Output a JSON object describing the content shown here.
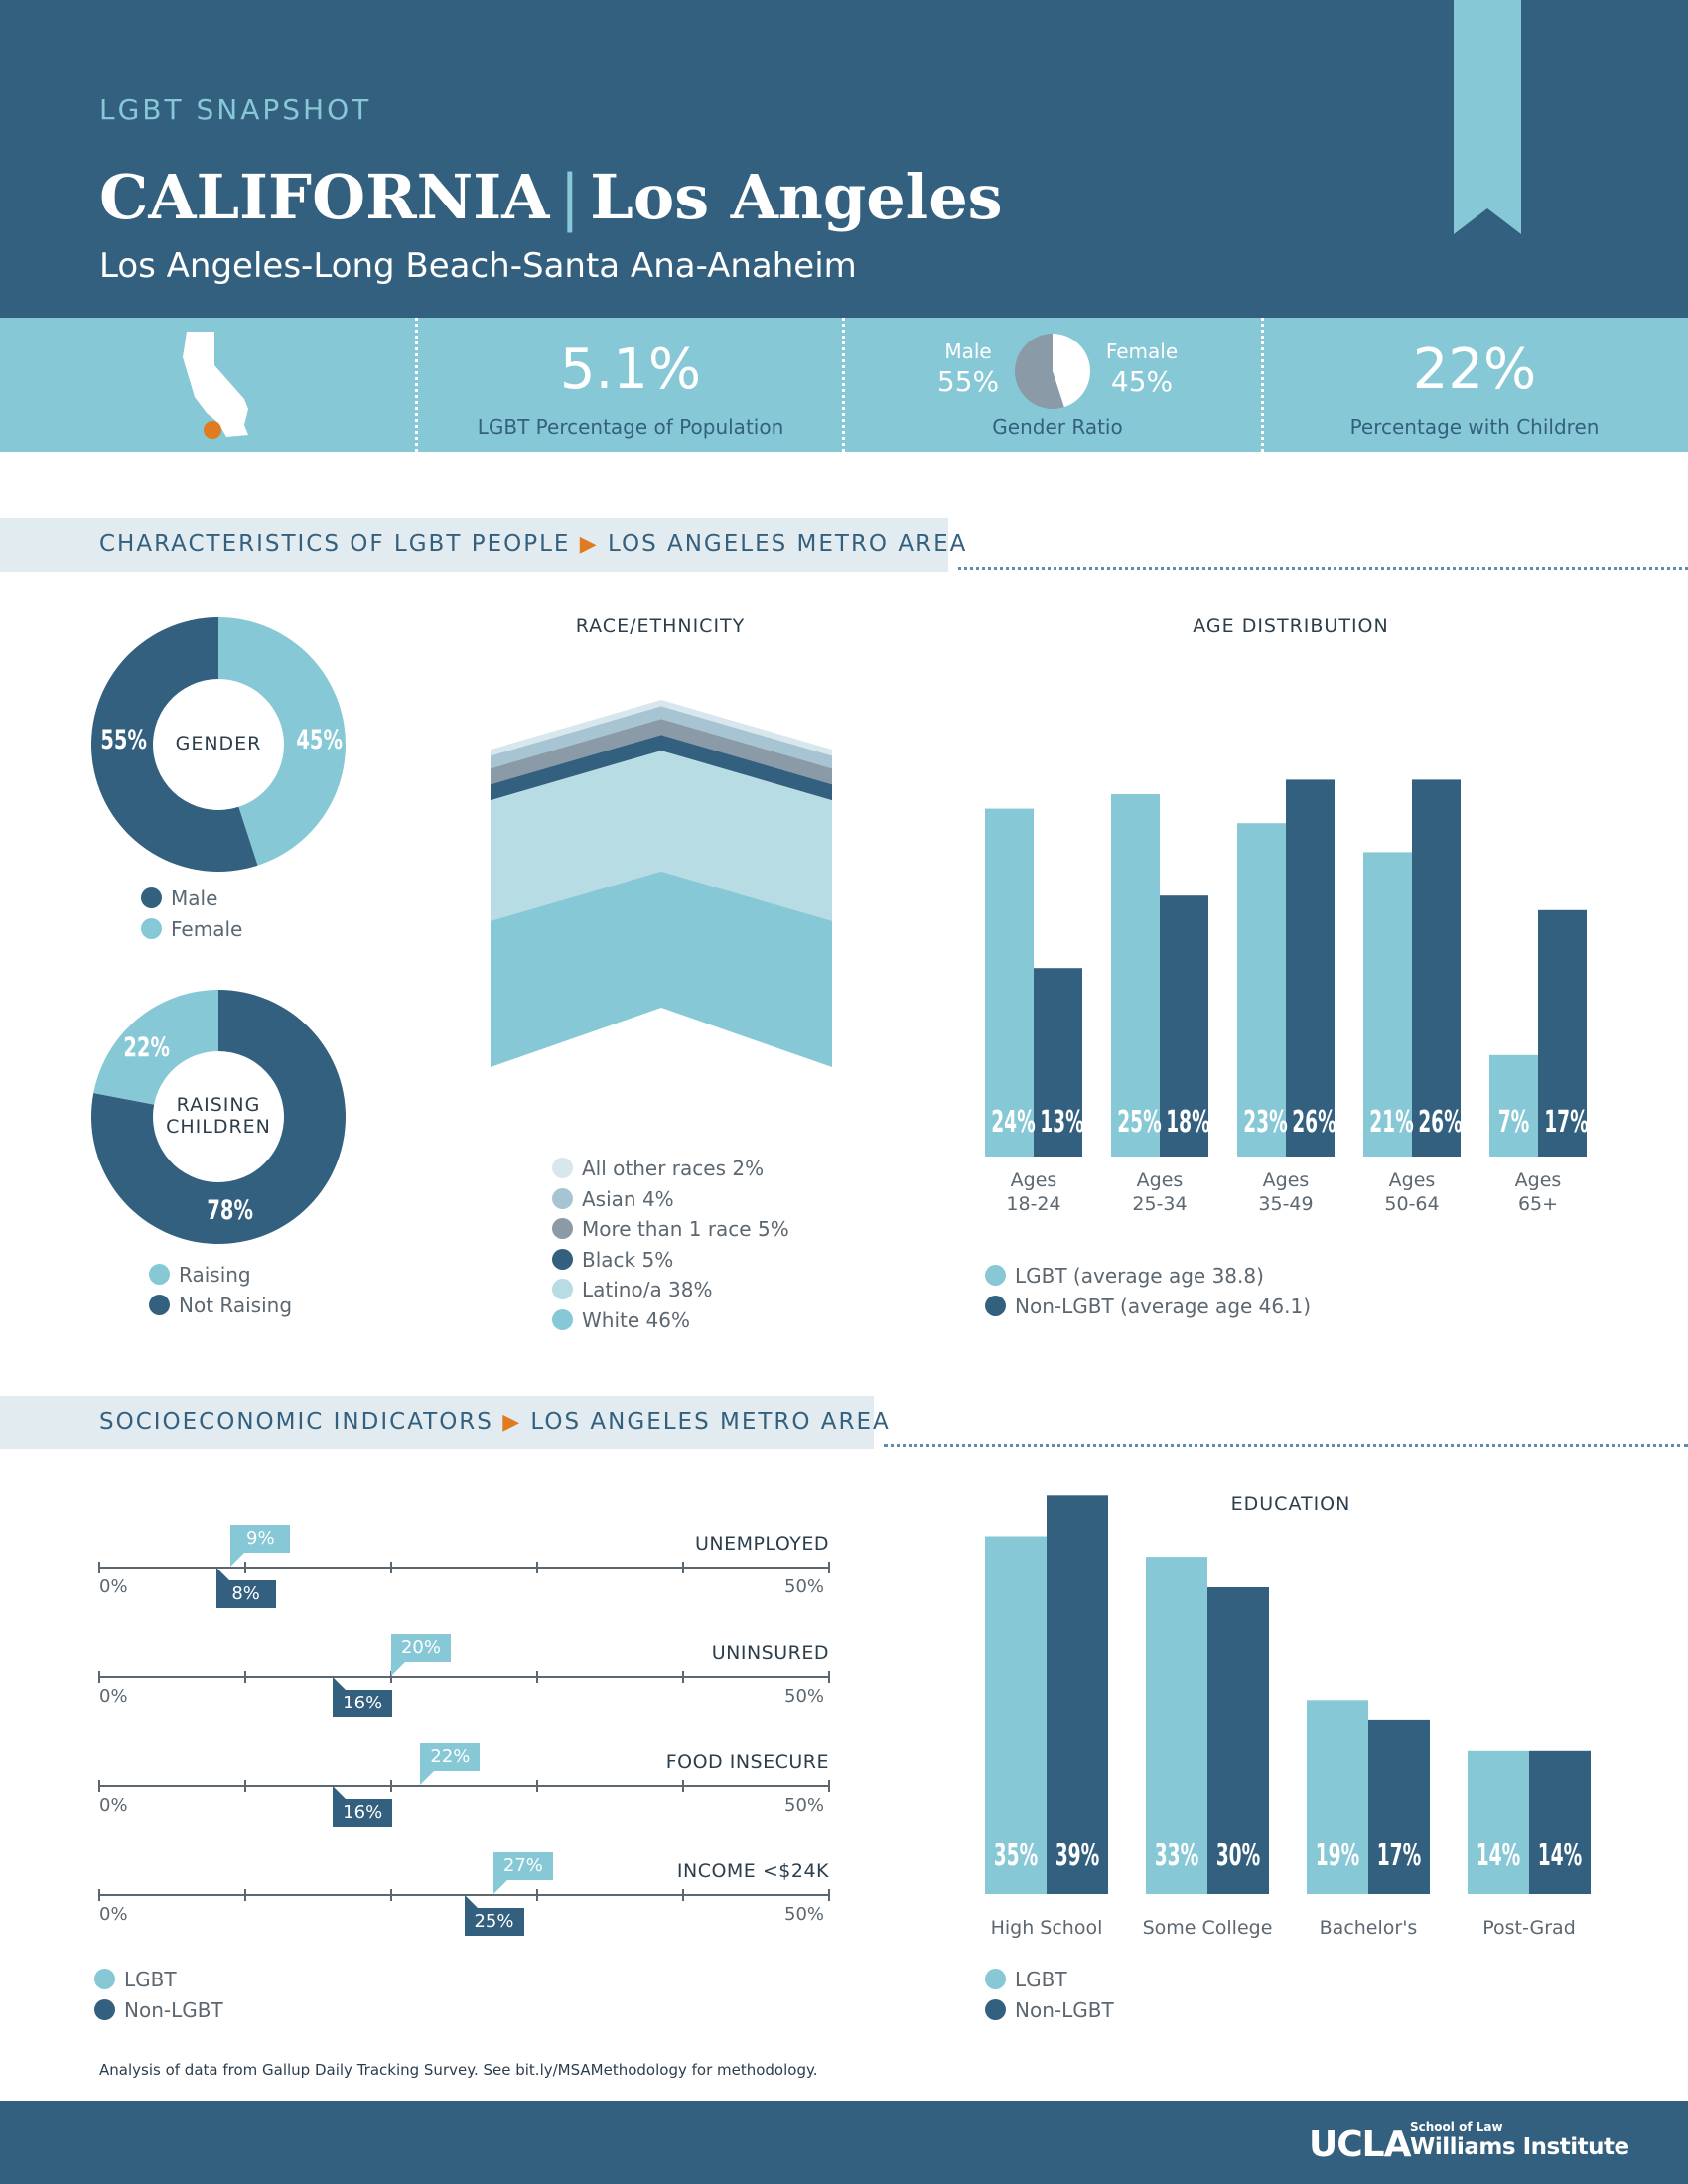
{
  "header": {
    "kicker": "LGBT SNAPSHOT",
    "state": "CALIFORNIA",
    "separator": "|",
    "city": "Los Angeles",
    "metro": "Los Angeles-Long Beach-Santa Ana-Anaheim"
  },
  "stats": {
    "lgbt_pct": "5.1%",
    "lgbt_pct_label": "LGBT Percentage of Population",
    "gender_male_label": "Male",
    "gender_male_pct": "55%",
    "gender_female_label": "Female",
    "gender_female_pct": "45%",
    "gender_label": "Gender Ratio",
    "children_pct": "22%",
    "children_label": "Percentage with Children"
  },
  "sections": {
    "characteristics": "CHARACTERISTICS OF LGBT PEOPLE",
    "characteristics_area": "LOS ANGELES METRO AREA",
    "socioeconomic": "SOCIOECONOMIC INDICATORS",
    "socioeconomic_area": "LOS ANGELES METRO AREA"
  },
  "colors": {
    "dark": "#34607f",
    "light": "#87c8d6",
    "accent": "#e07b1f"
  },
  "chart_data": [
    {
      "type": "pie",
      "center_label": "GENDER",
      "categories": [
        "Male",
        "Female"
      ],
      "values": [
        55,
        45
      ],
      "labels": [
        "55%",
        "45%"
      ]
    },
    {
      "type": "pie",
      "center_label": "RAISING CHILDREN",
      "center_line1": "RAISING",
      "center_line2": "CHILDREN",
      "categories": [
        "Raising",
        "Not Raising"
      ],
      "values": [
        22,
        78
      ],
      "labels": [
        "22%",
        "78%"
      ]
    },
    {
      "type": "area",
      "title": "RACE/ETHNICITY",
      "categories": [
        "All other races",
        "Asian",
        "More than 1 race",
        "Black",
        "Latino/a",
        "White"
      ],
      "values": [
        2,
        4,
        5,
        5,
        38,
        46
      ],
      "legend": [
        "All other races 2%",
        "Asian 4%",
        "More than 1 race 5%",
        "Black 5%",
        "Latino/a 38%",
        "White 46%"
      ]
    },
    {
      "type": "bar",
      "title": "AGE DISTRIBUTION",
      "categories": [
        "Ages 18-24",
        "Ages 25-34",
        "Ages 35-49",
        "Ages 50-64",
        "Ages 65+"
      ],
      "cat_line1": [
        "Ages",
        "Ages",
        "Ages",
        "Ages",
        "Ages"
      ],
      "cat_line2": [
        "18-24",
        "25-34",
        "35-49",
        "50-64",
        "65+"
      ],
      "series": [
        {
          "name": "LGBT (average age 38.8)",
          "values": [
            24,
            25,
            23,
            21,
            7
          ]
        },
        {
          "name": "Non-LGBT (average age 46.1)",
          "values": [
            13,
            18,
            26,
            26,
            17
          ]
        }
      ]
    },
    {
      "type": "bar",
      "orientation": "horizontal",
      "xlim": [
        0,
        50
      ],
      "axis_min_label": "0%",
      "axis_max_label": "50%",
      "categories": [
        "UNEMPLOYED",
        "UNINSURED",
        "FOOD INSECURE",
        "INCOME <$24K"
      ],
      "series": [
        {
          "name": "LGBT",
          "values": [
            9,
            20,
            22,
            27
          ]
        },
        {
          "name": "Non-LGBT",
          "values": [
            8,
            16,
            16,
            25
          ]
        }
      ]
    },
    {
      "type": "bar",
      "title": "EDUCATION",
      "categories": [
        "High School",
        "Some College",
        "Bachelor's",
        "Post-Grad"
      ],
      "series": [
        {
          "name": "LGBT",
          "values": [
            35,
            33,
            19,
            14
          ]
        },
        {
          "name": "Non-LGBT",
          "values": [
            39,
            30,
            17,
            14
          ]
        }
      ]
    }
  ],
  "footnote": "Analysis of data from Gallup Daily Tracking Survey. See bit.ly/MSAMethodology for methodology.",
  "footer": {
    "ucla": "UCLA",
    "school": "School of Law",
    "institute": "Williams Institute"
  }
}
